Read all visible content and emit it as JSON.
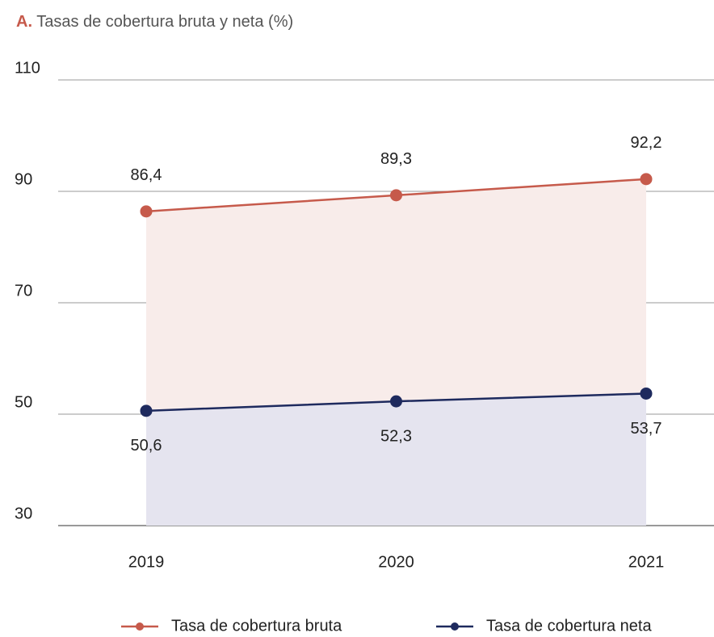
{
  "chart_data": {
    "type": "line",
    "title_label": "A.",
    "title": "Tasas de cobertura bruta y neta (%)",
    "categories": [
      "2019",
      "2020",
      "2021"
    ],
    "series": [
      {
        "name": "Tasa de cobertura bruta",
        "color": "#c65a4b",
        "fill": "#f8ecea",
        "values": [
          86.4,
          89.3,
          92.2
        ],
        "value_labels": [
          "86,4",
          "89,3",
          "92,2"
        ],
        "label_position": "above"
      },
      {
        "name": "Tasa de cobertura neta",
        "color": "#1e2a5e",
        "fill": "#e5e4ef",
        "values": [
          50.6,
          52.3,
          53.7
        ],
        "value_labels": [
          "50,6",
          "52,3",
          "53,7"
        ],
        "label_position": "below"
      }
    ],
    "ylim": [
      30,
      110
    ],
    "yticks": [
      30,
      50,
      70,
      90,
      110
    ],
    "grid": true,
    "legend": "bottom"
  }
}
